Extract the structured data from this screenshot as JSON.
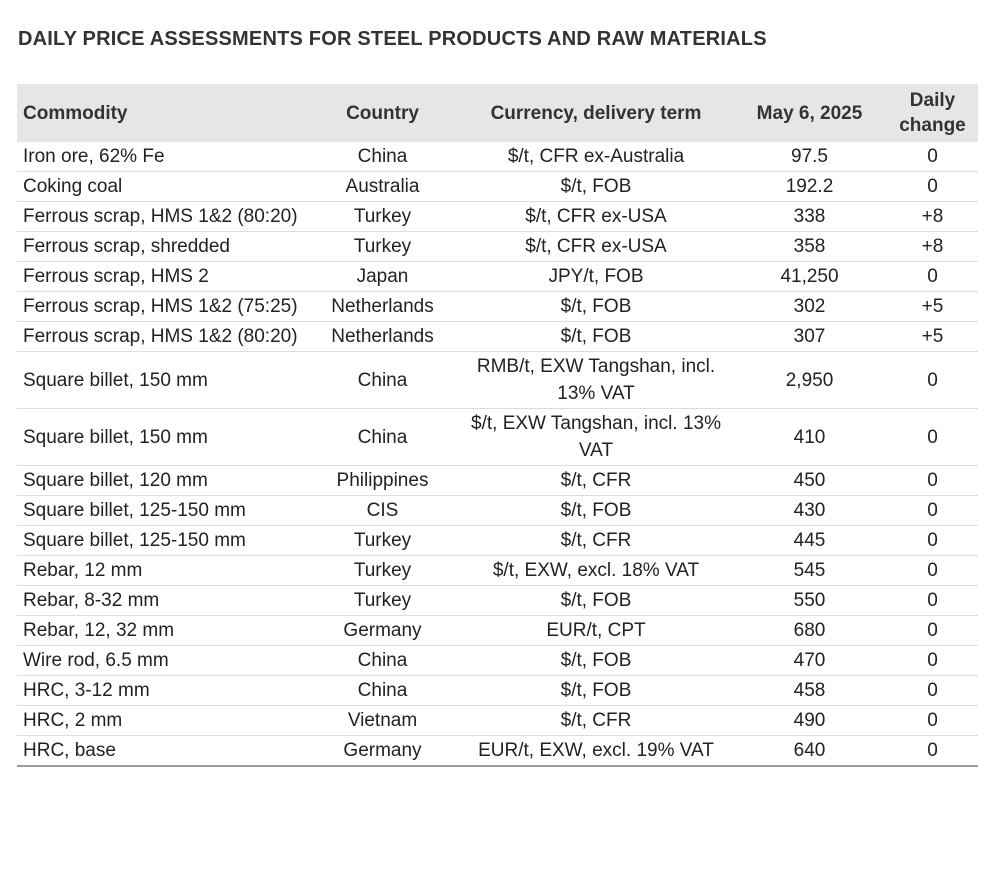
{
  "title": "DAILY PRICE ASSESSMENTS FOR STEEL PRODUCTS AND RAW MATERIALS",
  "table": {
    "headers": {
      "commodity": "Commodity",
      "country": "Country",
      "term": "Currency, delivery term",
      "price": "May 6, 2025",
      "change_line1": "Daily",
      "change_line2": "change"
    },
    "rows": [
      {
        "commodity": "Iron ore, 62% Fe",
        "country": "China",
        "term": "$/t, CFR ex-Australia",
        "price": "97.5",
        "change": "0"
      },
      {
        "commodity": "Coking coal",
        "country": "Australia",
        "term": "$/t, FOB",
        "price": "192.2",
        "change": "0"
      },
      {
        "commodity": "Ferrous scrap, HMS 1&2 (80:20)",
        "country": "Turkey",
        "term": "$/t, CFR ex-USA",
        "price": "338",
        "change": "+8"
      },
      {
        "commodity": "Ferrous scrap, shredded",
        "country": "Turkey",
        "term": "$/t, CFR ex-USA",
        "price": "358",
        "change": "+8"
      },
      {
        "commodity": "Ferrous scrap, HMS 2",
        "country": "Japan",
        "term": "JPY/t, FOB",
        "price": "41,250",
        "change": "0"
      },
      {
        "commodity": "Ferrous scrap, HMS 1&2 (75:25)",
        "country": "Netherlands",
        "term": "$/t, FOB",
        "price": "302",
        "change": "+5"
      },
      {
        "commodity": "Ferrous scrap, HMS 1&2 (80:20)",
        "country": "Netherlands",
        "term": "$/t, FOB",
        "price": "307",
        "change": "+5"
      },
      {
        "commodity": "Square billet, 150 mm",
        "country": "China",
        "term": "RMB/t, EXW Tangshan, incl. 13% VAT",
        "price": "2,950",
        "change": "0"
      },
      {
        "commodity": "Square billet, 150 mm",
        "country": "China",
        "term": "$/t, EXW Tangshan, incl. 13% VAT",
        "price": "410",
        "change": "0"
      },
      {
        "commodity": "Square billet, 120 mm",
        "country": "Philippines",
        "term": "$/t, CFR",
        "price": "450",
        "change": "0"
      },
      {
        "commodity": "Square billet, 125-150 mm",
        "country": "CIS",
        "term": "$/t, FOB",
        "price": "430",
        "change": "0"
      },
      {
        "commodity": "Square billet, 125-150 mm",
        "country": "Turkey",
        "term": "$/t, CFR",
        "price": "445",
        "change": "0"
      },
      {
        "commodity": "Rebar, 12 mm",
        "country": "Turkey",
        "term": "$/t, EXW, excl. 18% VAT",
        "price": "545",
        "change": "0"
      },
      {
        "commodity": "Rebar, 8-32 mm",
        "country": "Turkey",
        "term": "$/t, FOB",
        "price": "550",
        "change": "0"
      },
      {
        "commodity": "Rebar, 12, 32 mm",
        "country": "Germany",
        "term": "EUR/t, CPT",
        "price": "680",
        "change": "0"
      },
      {
        "commodity": "Wire rod, 6.5 mm",
        "country": "China",
        "term": "$/t, FOB",
        "price": "470",
        "change": "0"
      },
      {
        "commodity": "HRC, 3-12 mm",
        "country": "China",
        "term": "$/t, FOB",
        "price": "458",
        "change": "0"
      },
      {
        "commodity": "HRC, 2 mm",
        "country": "Vietnam",
        "term": "$/t, CFR",
        "price": "490",
        "change": "0"
      },
      {
        "commodity": "HRC, base",
        "country": "Germany",
        "term": "EUR/t, EXW, excl. 19% VAT",
        "price": "640",
        "change": "0"
      }
    ]
  }
}
